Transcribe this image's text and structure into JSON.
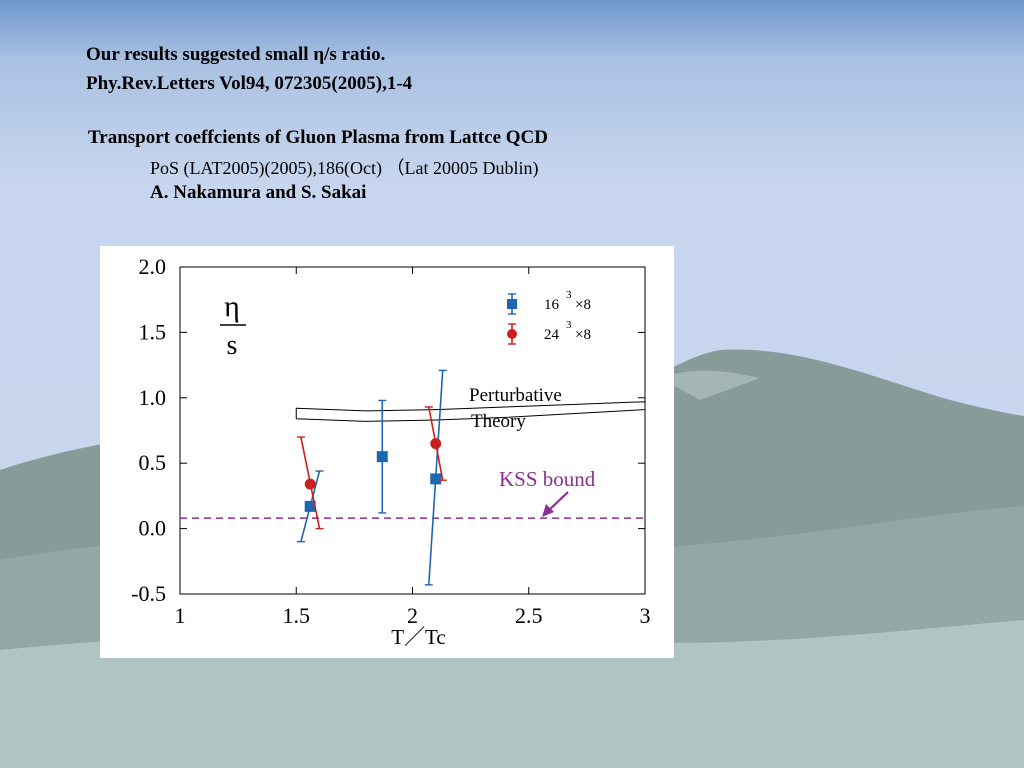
{
  "slide": {
    "line1": "Our results suggested small η/s ratio.",
    "line2": "Phy.Rev.Letters Vol94, 072305(2005),1-4",
    "line3": "Transport coeffcients of Gluon Plasma from Lattce QCD",
    "line4": "PoS (LAT2005)(2005),186(Oct) （Lat 20005 Dublin)",
    "line5": "A. Nakamura and S. Sakai"
  },
  "colors": {
    "series_16": "#1f66b0",
    "series_24": "#cc1f1f",
    "kss": "#8b2f95"
  },
  "chart_data": {
    "type": "scatter",
    "xlabel": "T／Tc",
    "ylabel_numerator": "η",
    "ylabel_denominator": "s",
    "xlim": [
      1,
      3
    ],
    "ylim": [
      -0.5,
      2.0
    ],
    "x_ticks": [
      "1",
      "1.5",
      "2",
      "2.5",
      "3"
    ],
    "y_ticks": [
      "2.0",
      "1.5",
      "1.0",
      "0.5",
      "0.0",
      "-0.5"
    ],
    "legend_position": "top-right",
    "series": [
      {
        "name_base": "16",
        "name_sup": "3",
        "name_rest": "×8",
        "marker": "square",
        "points": [
          {
            "x": 1.56,
            "y": 0.17,
            "err_low": -0.1,
            "err_high": 0.44,
            "lean": -0.04
          },
          {
            "x": 1.87,
            "y": 0.55,
            "err_low": 0.12,
            "err_high": 0.98,
            "lean": 0.0
          },
          {
            "x": 2.1,
            "y": 0.38,
            "err_low": -0.43,
            "err_high": 1.21,
            "lean": -0.03
          }
        ]
      },
      {
        "name_base": "24",
        "name_sup": "3",
        "name_rest": "×8",
        "marker": "circle",
        "points": [
          {
            "x": 1.56,
            "y": 0.34,
            "err_low": 0.0,
            "err_high": 0.7,
            "lean": 0.04
          },
          {
            "x": 2.1,
            "y": 0.65,
            "err_low": 0.37,
            "err_high": 0.93,
            "lean": 0.03
          }
        ]
      }
    ],
    "perturbative_band": {
      "label_line1": "Perturbative",
      "label_line2": "Theory",
      "x": [
        1.5,
        1.8,
        2.1,
        2.4,
        2.7,
        3.0
      ],
      "upper": [
        0.92,
        0.9,
        0.91,
        0.93,
        0.95,
        0.97
      ],
      "lower": [
        0.84,
        0.82,
        0.83,
        0.85,
        0.88,
        0.91
      ]
    },
    "kss_bound": {
      "label": "KSS bound",
      "trailing": "  ",
      "y": 0.08
    }
  }
}
